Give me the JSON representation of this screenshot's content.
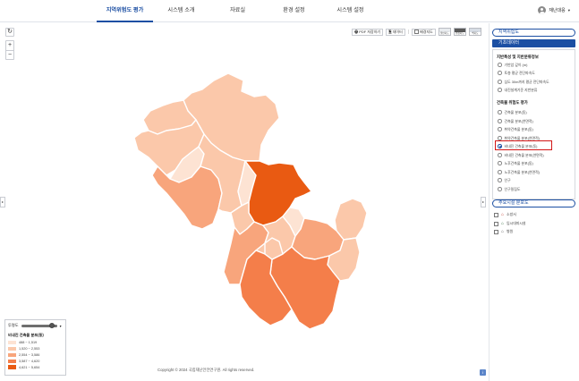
{
  "header": {
    "nav": [
      {
        "label": "지역위험도 평가",
        "active": true
      },
      {
        "label": "시스템 소개",
        "active": false
      },
      {
        "label": "자료실",
        "active": false
      },
      {
        "label": "환경 설정",
        "active": false
      },
      {
        "label": "시스템 설정",
        "active": false
      }
    ],
    "user_label": "재난대응",
    "user_caret": "▾",
    "icons": {
      "user": "user-avatar-icon",
      "caret": "chevron-down-icon"
    }
  },
  "map": {
    "refresh_glyph": "↻",
    "zoom_in": "+",
    "zoom_out": "−",
    "toolbar": {
      "print_label": "PDF 저장하기",
      "print_icon": "🖶",
      "data_label": "데이터",
      "data_icon": "🗎",
      "sep": "|",
      "toggle_label": "배경지도",
      "basemaps": [
        "일반지도",
        "위성지도",
        "백지도"
      ]
    },
    "left_toggle": "▸",
    "right_toggle": "▸",
    "region_colors": [
      "#fde3d3",
      "#fbc8aa",
      "#f8a57c",
      "#f47e4a",
      "#e95a12"
    ],
    "legend": {
      "label": "투명도",
      "opacity": 0.85,
      "collapse": "▾",
      "title": "비내진 건축물 분포(동)",
      "classes": [
        {
          "range": "488 ~ 1,519",
          "color": "#fde3d3"
        },
        {
          "range": "1,520 ~ 2,553",
          "color": "#fbc8aa"
        },
        {
          "range": "2,554 ~ 3,586",
          "color": "#f8a57c"
        },
        {
          "range": "3,587 ~ 4,620",
          "color": "#f47e4a"
        },
        {
          "range": "4,621 ~ 5,654",
          "color": "#e95a12"
        }
      ]
    },
    "copyright": "Copyright © 2024 국립재난안전연구원. All rights reserved.",
    "info_glyph": "i"
  },
  "panel": {
    "tab_main": "지역위험도",
    "tab_base": "기초데이터",
    "section1_title": "지반특성 및 지반분류정보",
    "section1_items": [
      "기반암 깊이 (m)",
      "토층 평균 전단파속도",
      "심도 30m까지 평균 전단파속도",
      "내진설계기준 지반분류"
    ],
    "section2_title": "건축물 위험도 평가",
    "section2_items": [
      {
        "label": "건축물 분포(동)",
        "selected": false
      },
      {
        "label": "건축물 분포(연면적)",
        "selected": false
      },
      {
        "label": "취약건축물 분포(동)",
        "selected": false
      },
      {
        "label": "취약건축물 분포(연면적)",
        "selected": false
      },
      {
        "label": "비내진 건축물 분포(동)",
        "selected": true
      },
      {
        "label": "비내진 건축물 분포(연면적)",
        "selected": false
      },
      {
        "label": "노후건축물 분포(동)",
        "selected": false
      },
      {
        "label": "노후건축물 분포(연면적)",
        "selected": false
      },
      {
        "label": "인구",
        "selected": false
      },
      {
        "label": "인구밀집도",
        "selected": false
      }
    ],
    "tab_facility": "주요시설 분포도",
    "facilities": [
      {
        "label": "소방서",
        "icon": "fire-station-icon"
      },
      {
        "label": "임시대피시설",
        "icon": "shelter-icon"
      },
      {
        "label": "병원",
        "icon": "hospital-icon"
      }
    ]
  }
}
